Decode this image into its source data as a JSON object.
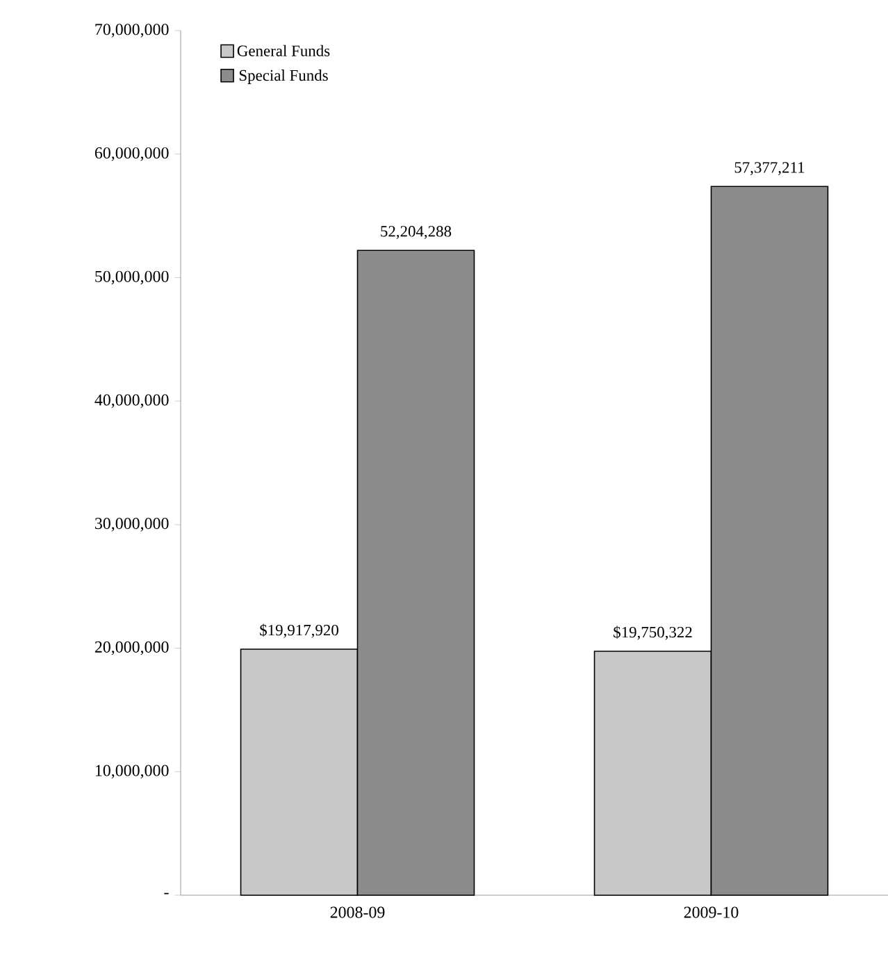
{
  "chart_data": {
    "type": "bar",
    "categories": [
      "2008-09",
      "2009-10"
    ],
    "series": [
      {
        "name": "General Funds",
        "color": "#c8c8c8",
        "values": [
          19917920,
          19750322
        ],
        "value_labels": [
          "$19,917,920",
          "$19,750,322"
        ]
      },
      {
        "name": "Special Funds",
        "color": "#8c8c8c",
        "values": [
          52204288,
          57377211
        ],
        "value_labels": [
          "52,204,288",
          "57,377,211"
        ]
      }
    ],
    "ylim": [
      0,
      70000000
    ],
    "yticks": [
      {
        "value": 0,
        "label": "-"
      },
      {
        "value": 10000000,
        "label": "10,000,000"
      },
      {
        "value": 20000000,
        "label": "20,000,000"
      },
      {
        "value": 30000000,
        "label": "30,000,000"
      },
      {
        "value": 40000000,
        "label": "40,000,000"
      },
      {
        "value": 50000000,
        "label": "50,000,000"
      },
      {
        "value": 60000000,
        "label": "60,000,000"
      },
      {
        "value": 70000000,
        "label": "70,000,000"
      }
    ],
    "legend": "top left",
    "grid": false
  }
}
